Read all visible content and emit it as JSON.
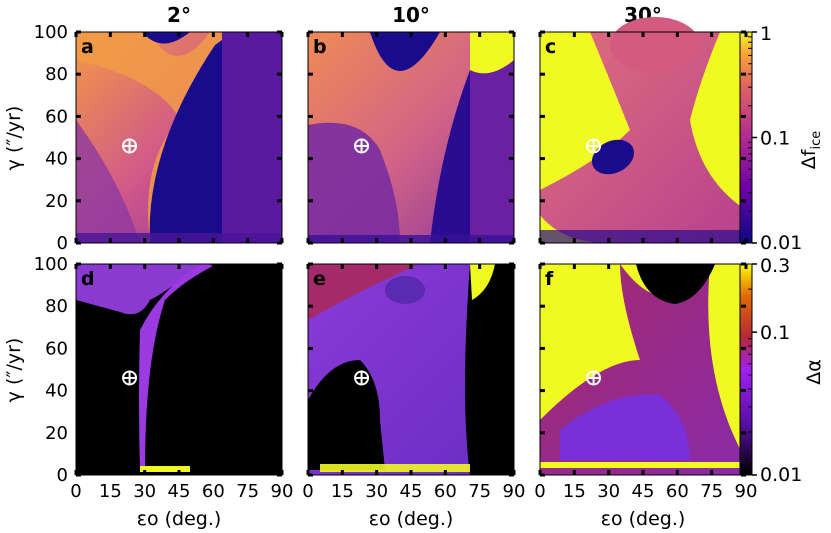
{
  "chart_data": {
    "type": "heatmap",
    "column_titles": [
      "2°",
      "10°",
      "30°"
    ],
    "xlabel": "εo (deg.)",
    "ylabel": "γ (″/yr)",
    "x_ticks": [
      "0",
      "15",
      "30",
      "45",
      "60",
      "75",
      "90"
    ],
    "y_ticks": [
      "0",
      "20",
      "40",
      "60",
      "80",
      "100"
    ],
    "xlim": [
      0,
      90
    ],
    "ylim": [
      0,
      100
    ],
    "earth_marker": {
      "x": 23.4,
      "y": 46,
      "symbol": "⊕"
    },
    "rows": [
      {
        "quantity": "Δf_ice",
        "colorbar_label": "Δf",
        "colorbar_sub": "ice",
        "scale": "log",
        "colorbar_ticks": [
          "1",
          "0.1",
          "0.01"
        ],
        "colorbar_values": [
          1,
          0.1,
          0.01
        ],
        "colormap": "plasma",
        "panels": [
          {
            "label": "a",
            "inclination": "2°"
          },
          {
            "label": "b",
            "inclination": "10°"
          },
          {
            "label": "c",
            "inclination": "30°"
          }
        ]
      },
      {
        "quantity": "Δα",
        "colorbar_label": "Δα",
        "colorbar_sub": "",
        "scale": "log",
        "colorbar_ticks": [
          "0.3",
          "0.1",
          "0.01"
        ],
        "colorbar_values": [
          0.3,
          0.1,
          0.01
        ],
        "colormap": "gnuplot",
        "panels": [
          {
            "label": "d",
            "inclination": "2°"
          },
          {
            "label": "e",
            "inclination": "10°"
          },
          {
            "label": "f",
            "inclination": "30°"
          }
        ]
      }
    ]
  }
}
